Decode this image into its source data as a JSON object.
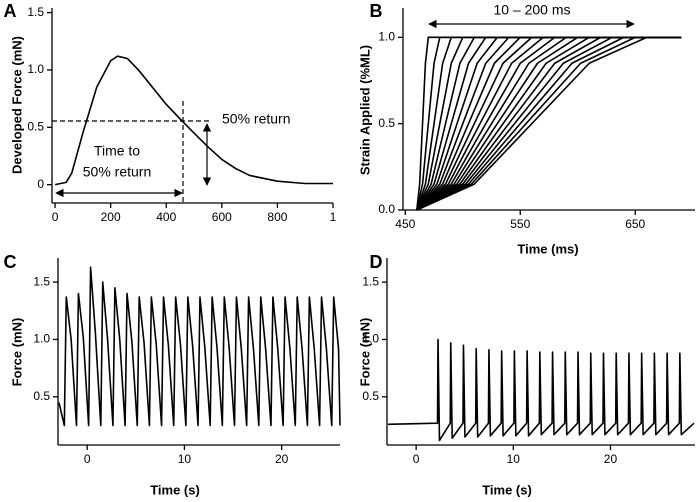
{
  "chart_data": [
    {
      "type": "line",
      "panel_label": "A",
      "ylabel": "Developed Force (mN)",
      "annotations": [
        "Time to",
        "50% return",
        "50% return"
      ],
      "xlim": [
        -11,
        1000
      ],
      "ylim": [
        -0.16,
        1.54
      ],
      "xticks": [
        0,
        200,
        400,
        600,
        800,
        {
          "value": 1000,
          "label": "1"
        }
      ],
      "yticks": [
        0,
        0.5,
        {
          "value": 1,
          "label": "1.0"
        },
        1.5
      ],
      "series": [
        {
          "color": "#000000",
          "x": [
            0,
            40,
            60,
            100,
            150,
            200,
            225,
            260,
            300,
            350,
            400,
            455,
            500,
            550,
            600,
            650,
            700,
            800,
            900,
            1000
          ],
          "values": [
            0,
            0.02,
            0.1,
            0.45,
            0.85,
            1.08,
            1.12,
            1.1,
            1.0,
            0.85,
            0.7,
            0.56,
            0.45,
            0.33,
            0.22,
            0.14,
            0.08,
            0.03,
            0.01,
            0.01
          ]
        }
      ]
    },
    {
      "type": "line",
      "panel_label": "B",
      "ylabel": "Strain Applied (%ML)",
      "xlabel": "Time (ms)",
      "annotations": [
        "10 – 200 ms"
      ],
      "xlim": [
        448,
        702
      ],
      "ylim": [
        0,
        1.17
      ],
      "xticks": [
        450,
        550,
        650
      ],
      "yticks": [
        {
          "value": 0,
          "label": "0.0"
        },
        0.5,
        {
          "value": 1,
          "label": "1.0"
        }
      ],
      "series": [
        {
          "color": "#000000",
          "x": [
            460,
            462.5,
            465,
            467.5,
            470,
            690
          ],
          "values": [
            0,
            0.15,
            0.5,
            0.85,
            1,
            1
          ]
        },
        {
          "color": "#000000",
          "x": [
            460,
            465,
            470,
            475,
            480,
            690
          ],
          "values": [
            0,
            0.15,
            0.5,
            0.85,
            1,
            1
          ]
        },
        {
          "color": "#000000",
          "x": [
            460,
            467.5,
            475,
            482.5,
            490,
            690
          ],
          "values": [
            0,
            0.15,
            0.5,
            0.85,
            1,
            1
          ]
        },
        {
          "color": "#000000",
          "x": [
            460,
            470,
            480,
            490,
            500,
            690
          ],
          "values": [
            0,
            0.15,
            0.5,
            0.85,
            1,
            1
          ]
        },
        {
          "color": "#000000",
          "x": [
            460,
            472.5,
            485,
            497.5,
            510,
            690
          ],
          "values": [
            0,
            0.15,
            0.5,
            0.85,
            1,
            1
          ]
        },
        {
          "color": "#000000",
          "x": [
            460,
            475,
            490,
            505,
            520,
            690
          ],
          "values": [
            0,
            0.15,
            0.5,
            0.85,
            1,
            1
          ]
        },
        {
          "color": "#000000",
          "x": [
            460,
            477.5,
            495,
            512.5,
            530,
            690
          ],
          "values": [
            0,
            0.15,
            0.5,
            0.85,
            1,
            1
          ]
        },
        {
          "color": "#000000",
          "x": [
            460,
            480,
            500,
            520,
            540,
            690
          ],
          "values": [
            0,
            0.15,
            0.5,
            0.85,
            1,
            1
          ]
        },
        {
          "color": "#000000",
          "x": [
            460,
            482.5,
            505,
            527.5,
            550,
            690
          ],
          "values": [
            0,
            0.15,
            0.5,
            0.85,
            1,
            1
          ]
        },
        {
          "color": "#000000",
          "x": [
            460,
            485,
            510,
            535,
            560,
            690
          ],
          "values": [
            0,
            0.15,
            0.5,
            0.85,
            1,
            1
          ]
        },
        {
          "color": "#000000",
          "x": [
            460,
            487.5,
            515,
            542.5,
            570,
            690
          ],
          "values": [
            0,
            0.15,
            0.5,
            0.85,
            1,
            1
          ]
        },
        {
          "color": "#000000",
          "x": [
            460,
            490,
            520,
            550,
            580,
            690
          ],
          "values": [
            0,
            0.15,
            0.5,
            0.85,
            1,
            1
          ]
        },
        {
          "color": "#000000",
          "x": [
            460,
            492.5,
            525,
            557.5,
            590,
            690
          ],
          "values": [
            0,
            0.15,
            0.5,
            0.85,
            1,
            1
          ]
        },
        {
          "color": "#000000",
          "x": [
            460,
            495,
            530,
            565,
            600,
            690
          ],
          "values": [
            0,
            0.15,
            0.5,
            0.85,
            1,
            1
          ]
        },
        {
          "color": "#000000",
          "x": [
            460,
            497.5,
            535,
            572.5,
            610,
            690
          ],
          "values": [
            0,
            0.15,
            0.5,
            0.85,
            1,
            1
          ]
        },
        {
          "color": "#000000",
          "x": [
            460,
            500,
            540,
            580,
            620,
            690
          ],
          "values": [
            0,
            0.15,
            0.5,
            0.85,
            1,
            1
          ]
        },
        {
          "color": "#000000",
          "x": [
            460,
            502.5,
            545,
            587.5,
            630,
            690
          ],
          "values": [
            0,
            0.15,
            0.5,
            0.85,
            1,
            1
          ]
        },
        {
          "color": "#000000",
          "x": [
            460,
            505,
            550,
            595,
            640,
            690
          ],
          "values": [
            0,
            0.15,
            0.5,
            0.85,
            1,
            1
          ]
        },
        {
          "color": "#000000",
          "x": [
            460,
            507.5,
            555,
            602.5,
            650,
            690
          ],
          "values": [
            0,
            0.15,
            0.5,
            0.85,
            1,
            1
          ]
        },
        {
          "color": "#000000",
          "x": [
            460,
            510,
            560,
            610,
            660,
            690
          ],
          "values": [
            0,
            0.15,
            0.5,
            0.85,
            1,
            1
          ]
        }
      ]
    },
    {
      "type": "line",
      "panel_label": "C",
      "ylabel": "Force (mN)",
      "xlabel": "Time (s)",
      "xlim": [
        -3,
        26
      ],
      "ylim": [
        0.08,
        1.71
      ],
      "xticks": [
        0,
        10,
        20
      ],
      "yticks": [
        0.5,
        {
          "value": 1,
          "label": "1.0"
        },
        1.5
      ],
      "series": [
        {
          "color": "#000000",
          "x": [
            -2.9,
            -2.35,
            -2.15,
            -1.65,
            -1.1,
            -0.9,
            -0.4,
            0.15,
            0.35,
            0.85,
            1.4,
            1.6,
            2.1,
            2.65,
            2.85,
            3.35,
            3.9,
            4.1,
            4.6,
            5.15,
            5.35,
            5.85,
            6.4,
            6.6,
            7.1,
            7.65,
            7.85,
            8.35,
            8.9,
            9.1,
            9.6,
            10.15,
            10.35,
            10.85,
            11.4,
            11.6,
            12.1,
            12.65,
            12.85,
            13.35,
            13.9,
            14.1,
            14.6,
            15.15,
            15.35,
            15.85,
            16.4,
            16.6,
            17.1,
            17.65,
            17.85,
            18.35,
            18.9,
            19.1,
            19.6,
            20.15,
            20.35,
            20.85,
            21.4,
            21.6,
            22.1,
            22.65,
            22.85,
            23.35,
            23.9,
            24.1,
            24.6,
            25.15,
            25.35,
            25.85,
            26.0
          ],
          "values": [
            0.45,
            0.25,
            1.37,
            1.0,
            0.25,
            1.4,
            1.02,
            0.25,
            1.63,
            1.05,
            0.25,
            1.5,
            1.0,
            0.25,
            1.45,
            1.0,
            0.25,
            1.4,
            0.98,
            0.25,
            1.37,
            0.97,
            0.25,
            1.37,
            0.96,
            0.25,
            1.37,
            0.95,
            0.25,
            1.37,
            0.95,
            0.25,
            1.37,
            0.94,
            0.25,
            1.37,
            0.93,
            0.25,
            1.37,
            0.93,
            0.25,
            1.37,
            0.93,
            0.25,
            1.37,
            0.92,
            0.25,
            1.37,
            0.92,
            0.25,
            1.37,
            0.92,
            0.25,
            1.37,
            0.92,
            0.25,
            1.37,
            0.92,
            0.25,
            1.37,
            0.92,
            0.25,
            1.37,
            0.92,
            0.25,
            1.37,
            0.92,
            0.25,
            1.37,
            0.92,
            0.25
          ]
        }
      ]
    },
    {
      "type": "line",
      "panel_label": "D",
      "ylabel": "Force (mN)",
      "xlabel": "Time (s)",
      "xlim": [
        -3,
        28.7
      ],
      "ylim": [
        0.08,
        1.71
      ],
      "xticks": [
        0,
        10,
        20
      ],
      "yticks": [
        0.5,
        {
          "value": 1,
          "label": "1.0"
        },
        1.5
      ],
      "series": [
        {
          "color": "#000000",
          "x": [
            -2.9,
            2.2,
            2.25,
            2.4,
            3.51,
            3.56,
            3.71,
            4.82,
            4.87,
            5.02,
            6.13,
            6.18,
            6.33,
            7.44,
            7.49,
            7.64,
            8.75,
            8.8,
            8.95,
            10.06,
            10.11,
            10.26,
            11.37,
            11.42,
            11.57,
            12.68,
            12.73,
            12.88,
            13.99,
            14.04,
            14.19,
            15.3,
            15.35,
            15.5,
            16.61,
            16.66,
            16.81,
            17.92,
            17.97,
            18.12,
            19.23,
            19.28,
            19.43,
            20.54,
            20.59,
            20.74,
            21.85,
            21.9,
            22.05,
            23.16,
            23.21,
            23.36,
            24.47,
            24.52,
            24.67,
            25.78,
            25.83,
            25.98,
            27.09,
            27.14,
            27.29,
            28.6
          ],
          "values": [
            0.26,
            0.27,
            1.0,
            0.12,
            0.27,
            0.97,
            0.14,
            0.27,
            0.95,
            0.15,
            0.27,
            0.92,
            0.15,
            0.27,
            0.91,
            0.16,
            0.27,
            0.9,
            0.16,
            0.27,
            0.9,
            0.16,
            0.27,
            0.9,
            0.16,
            0.27,
            0.89,
            0.17,
            0.27,
            0.89,
            0.17,
            0.27,
            0.89,
            0.17,
            0.27,
            0.89,
            0.17,
            0.27,
            0.88,
            0.17,
            0.27,
            0.88,
            0.17,
            0.27,
            0.88,
            0.17,
            0.27,
            0.88,
            0.17,
            0.27,
            0.88,
            0.17,
            0.27,
            0.88,
            0.17,
            0.27,
            0.88,
            0.17,
            0.27,
            0.88,
            0.17,
            0.27
          ]
        }
      ]
    }
  ]
}
